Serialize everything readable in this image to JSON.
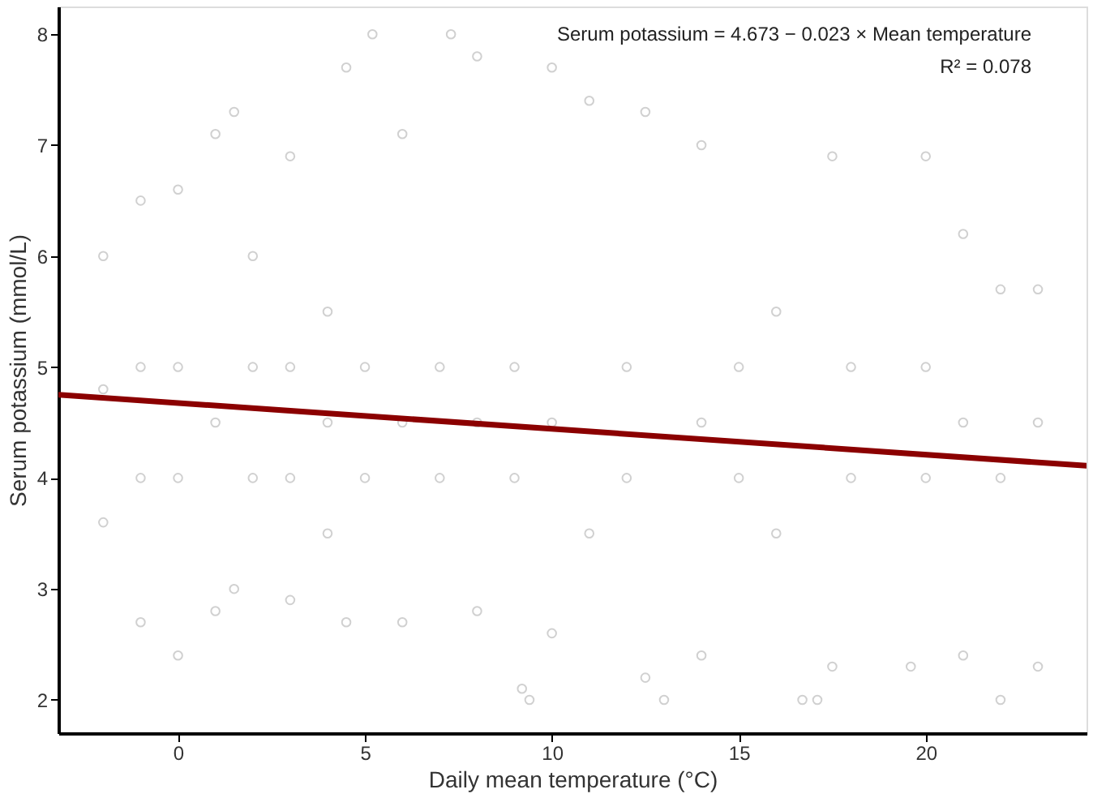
{
  "chart_data": {
    "type": "scatter",
    "xlabel": "Daily mean temperature (°C)",
    "ylabel": "Serum potassium (mmol/L)",
    "annotations": [
      "Serum potassium = 4.673 − 0.023 × Mean temperature",
      "R² = 0.078"
    ],
    "xlim": [
      -3.2,
      24.3
    ],
    "ylim": [
      1.7,
      8.25
    ],
    "xticks": [
      0,
      5,
      10,
      15,
      20
    ],
    "yticks": [
      2,
      3,
      4,
      5,
      6,
      7,
      8
    ],
    "marker": "circle",
    "series": [
      {
        "color": "#bdbdbd",
        "x": [
          -2,
          -2,
          -2,
          -1,
          -1,
          -1,
          -1,
          0,
          0,
          0,
          0,
          1,
          1,
          1,
          1.5,
          1.5,
          2,
          2,
          2,
          3,
          3,
          3,
          3,
          4,
          4,
          4,
          4.5,
          4.5,
          5.2,
          5,
          5,
          6,
          6,
          6,
          7.3,
          7,
          7,
          8,
          8,
          8,
          9.2,
          9.4,
          9,
          9,
          10,
          10,
          10,
          11,
          11,
          12.5,
          12.5,
          12,
          12,
          13,
          14,
          14,
          14,
          15,
          15,
          16.7,
          17.1,
          16,
          16,
          17.5,
          17.5,
          18,
          18,
          19.6,
          20,
          20,
          20,
          21,
          21,
          21,
          22,
          22,
          22,
          23,
          23,
          23
        ],
        "values": [
          3.6,
          6.0,
          4.8,
          2.7,
          6.5,
          4.0,
          5.0,
          2.4,
          6.6,
          4.0,
          5.0,
          2.8,
          7.1,
          4.5,
          3.0,
          7.3,
          4.0,
          5.0,
          6.0,
          2.9,
          6.9,
          4.0,
          5.0,
          3.5,
          4.5,
          5.5,
          2.7,
          7.7,
          8.0,
          4.0,
          5.0,
          2.7,
          7.1,
          4.5,
          8.0,
          4.0,
          5.0,
          2.8,
          7.8,
          4.5,
          2.1,
          2.0,
          4.0,
          5.0,
          2.6,
          7.7,
          4.5,
          7.4,
          3.5,
          7.3,
          2.2,
          4.0,
          5.0,
          2.0,
          7.0,
          2.4,
          4.5,
          4.0,
          5.0,
          2.0,
          2.0,
          3.5,
          5.5,
          6.9,
          2.3,
          4.0,
          5.0,
          2.3,
          6.9,
          4.0,
          5.0,
          2.4,
          6.2,
          4.5,
          2.0,
          5.7,
          4.0,
          2.3,
          5.7,
          4.5
        ]
      },
      {
        "type": "line",
        "color": "#8b0000",
        "line_style": "solid",
        "marker": "none",
        "x": [
          -3.2,
          24.3
        ],
        "values": [
          4.75,
          4.11
        ]
      }
    ]
  }
}
